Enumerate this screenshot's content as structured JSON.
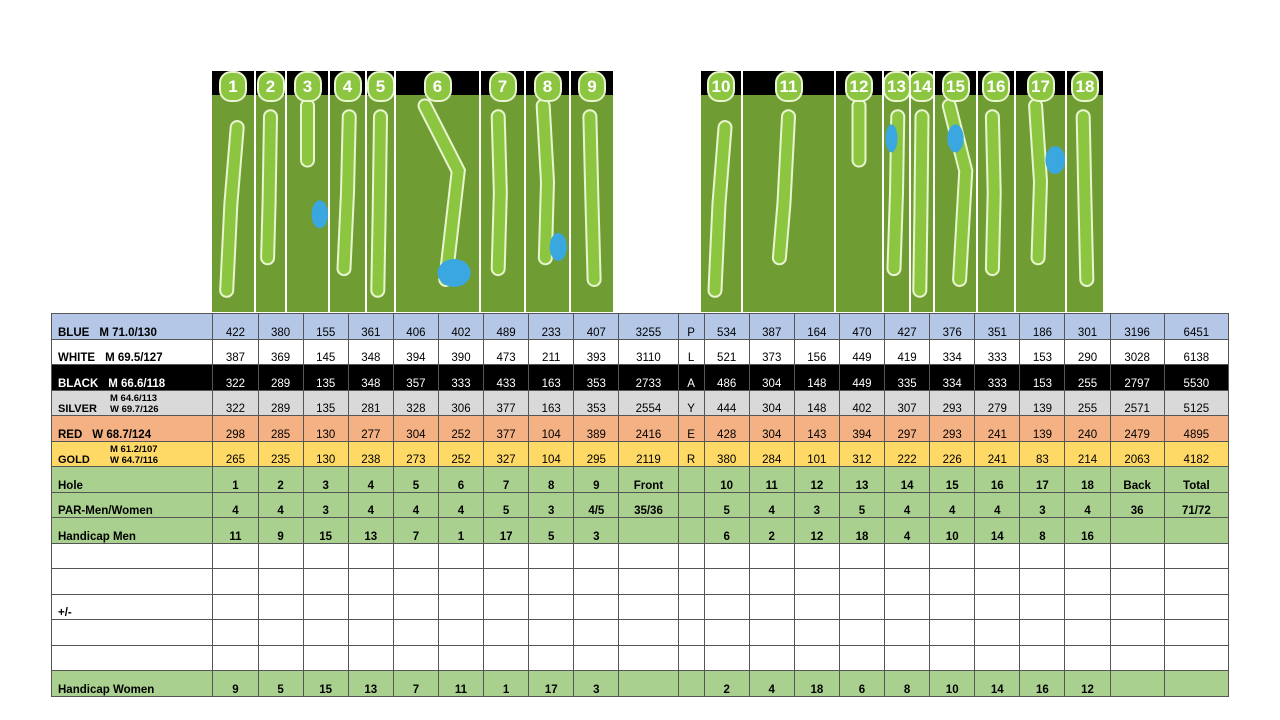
{
  "holes_front": [
    "1",
    "2",
    "3",
    "4",
    "5",
    "6",
    "7",
    "8",
    "9"
  ],
  "holes_back": [
    "10",
    "11",
    "12",
    "13",
    "14",
    "15",
    "16",
    "17",
    "18"
  ],
  "tees": [
    {
      "key": "blue",
      "name": "BLUE",
      "rating_m": "M 71.0/130",
      "front": [
        "422",
        "380",
        "155",
        "361",
        "406",
        "402",
        "489",
        "233",
        "407"
      ],
      "front_total": "3255",
      "letter": "P",
      "back": [
        "534",
        "387",
        "164",
        "470",
        "427",
        "376",
        "351",
        "186",
        "301"
      ],
      "back_total": "3196",
      "total": "6451"
    },
    {
      "key": "white",
      "name": "WHITE",
      "rating_m": "M 69.5/127",
      "front": [
        "387",
        "369",
        "145",
        "348",
        "394",
        "390",
        "473",
        "211",
        "393"
      ],
      "front_total": "3110",
      "letter": "L",
      "back": [
        "521",
        "373",
        "156",
        "449",
        "419",
        "334",
        "333",
        "153",
        "290"
      ],
      "back_total": "3028",
      "total": "6138"
    },
    {
      "key": "black",
      "name": "BLACK",
      "rating_m": "M 66.6/118",
      "front": [
        "322",
        "289",
        "135",
        "348",
        "357",
        "333",
        "433",
        "163",
        "353"
      ],
      "front_total": "2733",
      "letter": "A",
      "back": [
        "486",
        "304",
        "148",
        "449",
        "335",
        "334",
        "333",
        "153",
        "255"
      ],
      "back_total": "2797",
      "total": "5530"
    },
    {
      "key": "silver",
      "name": "SILVER",
      "rating_m": "M 64.6/113",
      "rating_w": "W 69.7/126",
      "front": [
        "322",
        "289",
        "135",
        "281",
        "328",
        "306",
        "377",
        "163",
        "353"
      ],
      "front_total": "2554",
      "letter": "Y",
      "back": [
        "444",
        "304",
        "148",
        "402",
        "307",
        "293",
        "279",
        "139",
        "255"
      ],
      "back_total": "2571",
      "total": "5125"
    },
    {
      "key": "red",
      "name": "RED",
      "rating_w": "W 68.7/124",
      "front": [
        "298",
        "285",
        "130",
        "277",
        "304",
        "252",
        "377",
        "104",
        "389"
      ],
      "front_total": "2416",
      "letter": "E",
      "back": [
        "428",
        "304",
        "143",
        "394",
        "297",
        "293",
        "241",
        "139",
        "240"
      ],
      "back_total": "2479",
      "total": "4895"
    },
    {
      "key": "gold",
      "name": "GOLD",
      "rating_m": "M 61.2/107",
      "rating_w": "W 64.7/116",
      "front": [
        "265",
        "235",
        "130",
        "238",
        "273",
        "252",
        "327",
        "104",
        "295"
      ],
      "front_total": "2119",
      "letter": "R",
      "back": [
        "380",
        "284",
        "101",
        "312",
        "222",
        "226",
        "241",
        "83",
        "214"
      ],
      "back_total": "2063",
      "total": "4182"
    }
  ],
  "hole_row": {
    "label": "Hole",
    "front_label": "Front",
    "back_label": "Back",
    "total_label": "Total"
  },
  "par_row": {
    "label": "PAR-Men/Women",
    "front": [
      "4",
      "4",
      "3",
      "4",
      "4",
      "4",
      "5",
      "3",
      "4/5"
    ],
    "front_total": "35/36",
    "back": [
      "5",
      "4",
      "3",
      "5",
      "4",
      "4",
      "4",
      "3",
      "4"
    ],
    "back_total": "36",
    "total": "71/72"
  },
  "hcp_men": {
    "label": "Handicap  Men",
    "front": [
      "11",
      "9",
      "15",
      "13",
      "7",
      "1",
      "17",
      "5",
      "3"
    ],
    "back": [
      "6",
      "2",
      "12",
      "18",
      "4",
      "10",
      "14",
      "8",
      "16"
    ]
  },
  "plus_minus_label": "+/-",
  "hcp_women": {
    "label": "Handicap  Women",
    "front": [
      "9",
      "5",
      "15",
      "13",
      "7",
      "11",
      "1",
      "17",
      "3"
    ],
    "back": [
      "2",
      "4",
      "18",
      "6",
      "8",
      "10",
      "14",
      "16",
      "12"
    ]
  },
  "colors": {
    "blue": "#b4c7e7",
    "black": "#000000",
    "silver": "#d9d9d9",
    "red": "#f4b183",
    "gold": "#ffd966",
    "green": "#a9d08e",
    "fairway": "#8cc641",
    "rough": "#6f9d33",
    "water": "#3aa7e0"
  }
}
